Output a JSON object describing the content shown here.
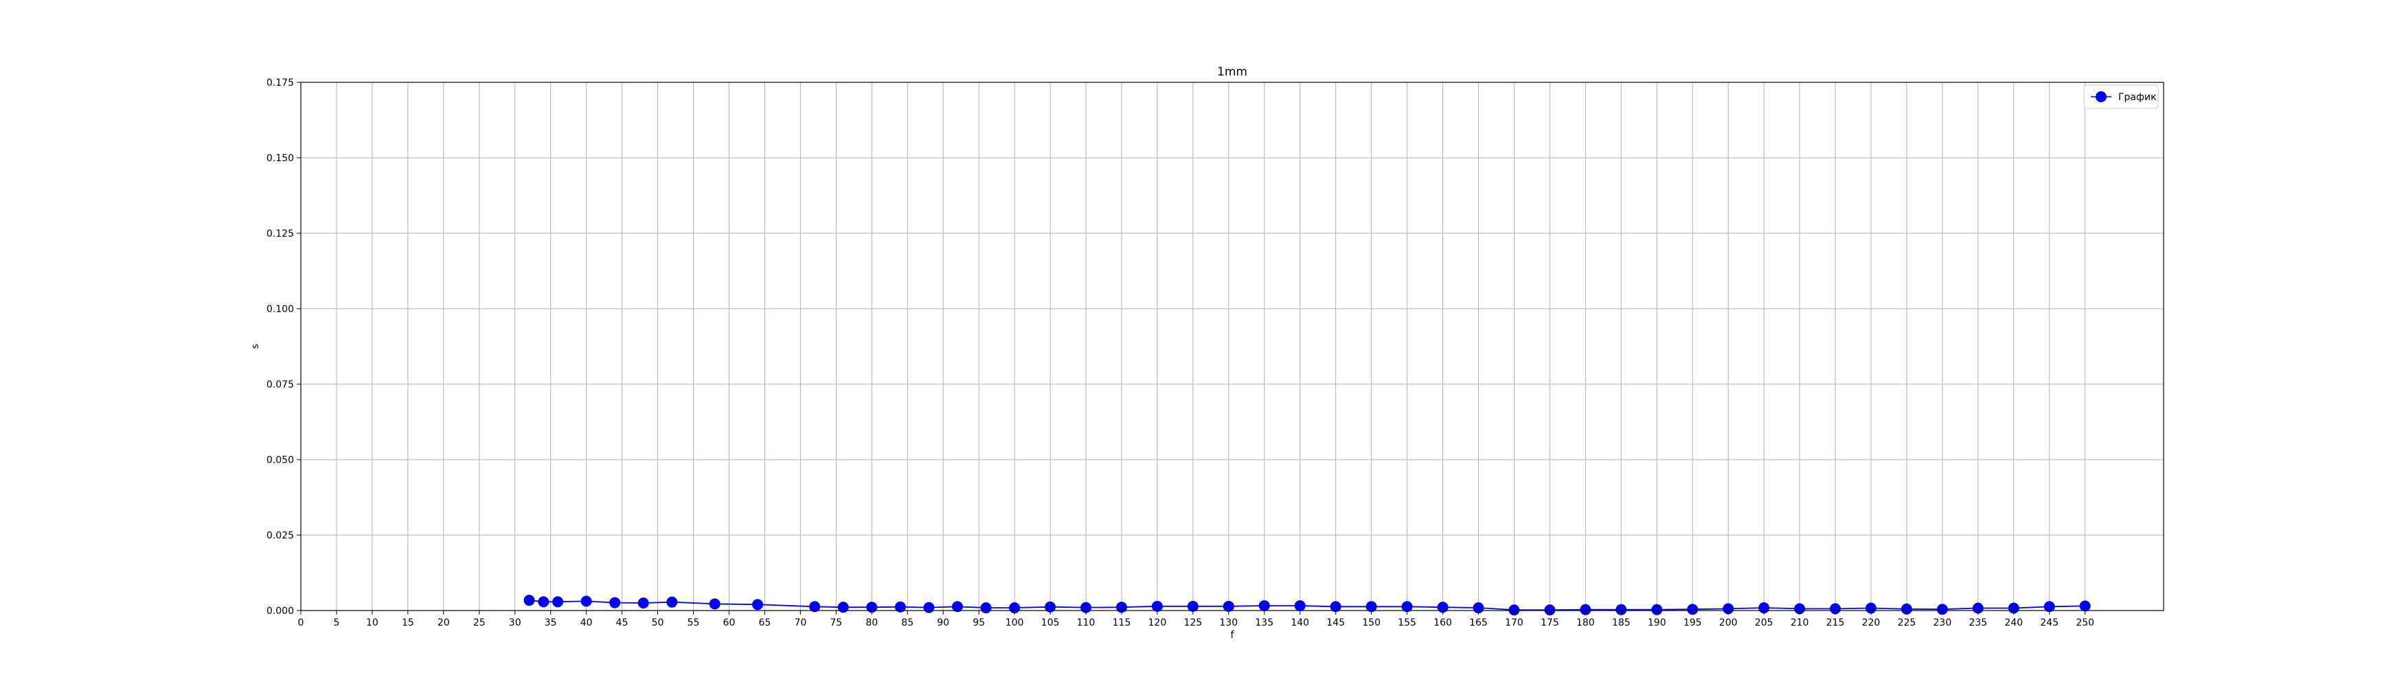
{
  "chart_data": {
    "type": "line",
    "title": "1mm",
    "xlabel": "f",
    "ylabel": "s",
    "xlim": [
      0,
      261
    ],
    "ylim": [
      0,
      0.175
    ],
    "xticks": [
      0,
      5,
      10,
      15,
      20,
      25,
      30,
      35,
      40,
      45,
      50,
      55,
      60,
      65,
      70,
      75,
      80,
      85,
      90,
      95,
      100,
      105,
      110,
      115,
      120,
      125,
      130,
      135,
      140,
      145,
      150,
      155,
      160,
      165,
      170,
      175,
      180,
      185,
      190,
      195,
      200,
      205,
      210,
      215,
      220,
      225,
      230,
      235,
      240,
      245,
      250
    ],
    "yticks": [
      0.0,
      0.025,
      0.05,
      0.075,
      0.1,
      0.125,
      0.15,
      0.175
    ],
    "ytick_labels": [
      "0.000",
      "0.025",
      "0.050",
      "0.075",
      "0.100",
      "0.125",
      "0.150",
      "0.175"
    ],
    "grid": true,
    "legend_position": "top-right",
    "series": [
      {
        "name": "График",
        "color": "#0000ff",
        "marker": "circle",
        "x": [
          32,
          34,
          36,
          40,
          44,
          48,
          52,
          58,
          64,
          72,
          76,
          80,
          84,
          88,
          92,
          96,
          100,
          105,
          110,
          115,
          120,
          125,
          130,
          135,
          140,
          145,
          150,
          155,
          160,
          165,
          170,
          175,
          180,
          185,
          190,
          195,
          200,
          205,
          210,
          215,
          220,
          225,
          230,
          235,
          240,
          245,
          250
        ],
        "y": [
          0.0034,
          0.0029,
          0.0029,
          0.0031,
          0.0026,
          0.0025,
          0.0028,
          0.0022,
          0.002,
          0.0013,
          0.0011,
          0.0011,
          0.0012,
          0.001,
          0.0013,
          0.0009,
          0.0009,
          0.0012,
          0.001,
          0.0011,
          0.0014,
          0.0014,
          0.0014,
          0.0016,
          0.0016,
          0.0013,
          0.0013,
          0.0013,
          0.0011,
          0.0009,
          0.0002,
          0.0002,
          0.0003,
          0.0003,
          0.0003,
          0.0004,
          0.0006,
          0.0009,
          0.0006,
          0.0006,
          0.0008,
          0.0005,
          0.0004,
          0.0008,
          0.0008,
          0.0013,
          0.0015
        ]
      }
    ]
  }
}
